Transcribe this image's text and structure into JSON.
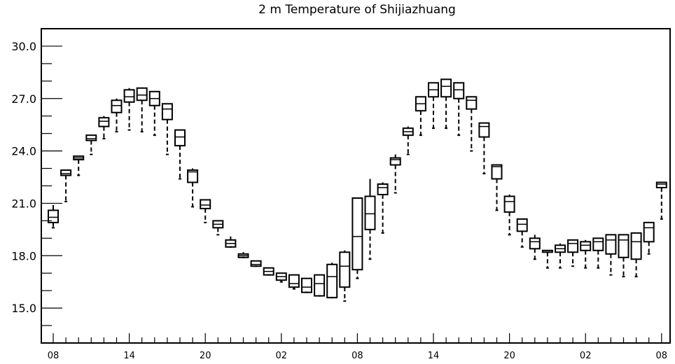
{
  "chart_data": {
    "type": "box",
    "title": "2 m Temperature of Shijiazhuang",
    "xlabel": "",
    "ylabel": "",
    "ylim": [
      13.0,
      31.0
    ],
    "ytick_values": [
      15.0,
      18.0,
      21.0,
      24.0,
      27.0,
      30.0
    ],
    "ytick_labels": [
      "15.0",
      "18.0",
      "21.0",
      "24.0",
      "27.0",
      "30.0"
    ],
    "xlim": [
      0,
      49
    ],
    "xtick_positions": [
      1,
      7,
      13,
      19,
      25,
      31,
      37,
      43,
      49
    ],
    "xtick_labels": [
      "08",
      "14",
      "20",
      "02",
      "08",
      "14",
      "20",
      "02",
      "08"
    ],
    "grid": false,
    "boxes": [
      {
        "x": 1,
        "min": 19.6,
        "q1": 19.9,
        "median": 20.2,
        "q3": 20.6,
        "max": 20.9
      },
      {
        "x": 2,
        "min": 21.1,
        "q1": 22.6,
        "median": 22.7,
        "q3": 22.9,
        "max": 22.9
      },
      {
        "x": 3,
        "min": 22.6,
        "q1": 23.5,
        "median": 23.6,
        "q3": 23.7,
        "max": 23.7
      },
      {
        "x": 4,
        "min": 23.8,
        "q1": 24.6,
        "median": 24.7,
        "q3": 24.9,
        "max": 24.9
      },
      {
        "x": 5,
        "min": 24.7,
        "q1": 25.4,
        "median": 25.7,
        "q3": 25.9,
        "max": 26.0
      },
      {
        "x": 6,
        "min": 25.1,
        "q1": 26.2,
        "median": 26.6,
        "q3": 26.9,
        "max": 27.0
      },
      {
        "x": 7,
        "min": 25.2,
        "q1": 26.8,
        "median": 27.1,
        "q3": 27.5,
        "max": 27.6
      },
      {
        "x": 8,
        "min": 25.1,
        "q1": 26.9,
        "median": 27.2,
        "q3": 27.6,
        "max": 27.6
      },
      {
        "x": 9,
        "min": 24.9,
        "q1": 26.6,
        "median": 27.0,
        "q3": 27.4,
        "max": 27.4
      },
      {
        "x": 10,
        "min": 23.8,
        "q1": 25.8,
        "median": 26.4,
        "q3": 26.7,
        "max": 26.7
      },
      {
        "x": 11,
        "min": 22.4,
        "q1": 24.3,
        "median": 24.8,
        "q3": 25.2,
        "max": 25.2
      },
      {
        "x": 12,
        "min": 20.8,
        "q1": 22.2,
        "median": 22.8,
        "q3": 22.9,
        "max": 23.0
      },
      {
        "x": 13,
        "min": 19.9,
        "q1": 20.7,
        "median": 20.9,
        "q3": 21.2,
        "max": 21.2
      },
      {
        "x": 14,
        "min": 19.2,
        "q1": 19.6,
        "median": 19.8,
        "q3": 20.0,
        "max": 20.0
      },
      {
        "x": 15,
        "min": 18.5,
        "q1": 18.5,
        "median": 18.7,
        "q3": 18.9,
        "max": 19.1
      },
      {
        "x": 16,
        "min": 17.9,
        "q1": 17.9,
        "median": 18.0,
        "q3": 18.1,
        "max": 18.2
      },
      {
        "x": 17,
        "min": 17.4,
        "q1": 17.4,
        "median": 17.5,
        "q3": 17.7,
        "max": 17.7
      },
      {
        "x": 18,
        "min": 16.9,
        "q1": 16.9,
        "median": 17.1,
        "q3": 17.3,
        "max": 17.3
      },
      {
        "x": 19,
        "min": 16.5,
        "q1": 16.6,
        "median": 16.8,
        "q3": 17.0,
        "max": 17.0
      },
      {
        "x": 20,
        "min": 16.1,
        "q1": 16.2,
        "median": 16.4,
        "q3": 16.9,
        "max": 16.9
      },
      {
        "x": 21,
        "min": 15.9,
        "q1": 15.9,
        "median": 16.2,
        "q3": 16.7,
        "max": 16.7
      },
      {
        "x": 22,
        "min": 15.7,
        "q1": 15.7,
        "median": 16.4,
        "q3": 16.9,
        "max": 16.9
      },
      {
        "x": 23,
        "min": 15.6,
        "q1": 15.6,
        "median": 16.8,
        "q3": 17.5,
        "max": 17.6
      },
      {
        "x": 24,
        "min": 15.4,
        "q1": 16.2,
        "median": 17.4,
        "q3": 18.2,
        "max": 18.3
      },
      {
        "x": 25,
        "min": 16.7,
        "q1": 17.2,
        "median": 19.1,
        "q3": 21.3,
        "max": 21.3
      },
      {
        "x": 26,
        "min": 17.8,
        "q1": 19.5,
        "median": 20.4,
        "q3": 21.4,
        "max": 22.4
      },
      {
        "x": 27,
        "min": 19.3,
        "q1": 21.5,
        "median": 21.9,
        "q3": 22.1,
        "max": 22.2
      },
      {
        "x": 28,
        "min": 21.6,
        "q1": 23.2,
        "median": 23.5,
        "q3": 23.6,
        "max": 23.8
      },
      {
        "x": 29,
        "min": 23.8,
        "q1": 24.9,
        "median": 25.1,
        "q3": 25.3,
        "max": 25.4
      },
      {
        "x": 30,
        "min": 24.9,
        "q1": 26.3,
        "median": 26.7,
        "q3": 27.1,
        "max": 27.1
      },
      {
        "x": 31,
        "min": 25.3,
        "q1": 27.1,
        "median": 27.5,
        "q3": 27.9,
        "max": 27.9
      },
      {
        "x": 32,
        "min": 25.3,
        "q1": 27.1,
        "median": 27.7,
        "q3": 28.1,
        "max": 28.1
      },
      {
        "x": 33,
        "min": 24.9,
        "q1": 27.0,
        "median": 27.5,
        "q3": 27.9,
        "max": 27.9
      },
      {
        "x": 34,
        "min": 24.0,
        "q1": 26.4,
        "median": 26.9,
        "q3": 27.1,
        "max": 27.1
      },
      {
        "x": 35,
        "min": 22.7,
        "q1": 24.8,
        "median": 25.4,
        "q3": 25.6,
        "max": 25.6
      },
      {
        "x": 36,
        "min": 20.6,
        "q1": 22.4,
        "median": 23.1,
        "q3": 23.2,
        "max": 23.2
      },
      {
        "x": 37,
        "min": 19.2,
        "q1": 20.5,
        "median": 21.1,
        "q3": 21.4,
        "max": 21.5
      },
      {
        "x": 38,
        "min": 18.5,
        "q1": 19.4,
        "median": 19.8,
        "q3": 20.1,
        "max": 20.1
      },
      {
        "x": 39,
        "min": 17.8,
        "q1": 18.4,
        "median": 18.8,
        "q3": 19.0,
        "max": 19.2
      },
      {
        "x": 40,
        "min": 17.3,
        "q1": 18.2,
        "median": 18.2,
        "q3": 18.3,
        "max": 18.3
      },
      {
        "x": 41,
        "min": 17.3,
        "q1": 18.2,
        "median": 18.4,
        "q3": 18.6,
        "max": 18.7
      },
      {
        "x": 42,
        "min": 17.4,
        "q1": 18.2,
        "median": 18.7,
        "q3": 18.9,
        "max": 18.9
      },
      {
        "x": 43,
        "min": 17.3,
        "q1": 18.3,
        "median": 18.6,
        "q3": 18.8,
        "max": 18.9
      },
      {
        "x": 44,
        "min": 17.3,
        "q1": 18.3,
        "median": 18.8,
        "q3": 19.0,
        "max": 19.0
      },
      {
        "x": 45,
        "min": 16.9,
        "q1": 18.1,
        "median": 18.9,
        "q3": 19.2,
        "max": 19.2
      },
      {
        "x": 46,
        "min": 16.8,
        "q1": 17.9,
        "median": 18.9,
        "q3": 19.2,
        "max": 19.2
      },
      {
        "x": 47,
        "min": 16.8,
        "q1": 17.8,
        "median": 18.8,
        "q3": 19.3,
        "max": 19.3
      },
      {
        "x": 48,
        "min": 18.1,
        "q1": 18.8,
        "median": 19.6,
        "q3": 19.9,
        "max": 19.9
      },
      {
        "x": 49,
        "min": 20.1,
        "q1": 21.9,
        "median": 22.1,
        "q3": 22.2,
        "max": 22.2
      }
    ]
  }
}
